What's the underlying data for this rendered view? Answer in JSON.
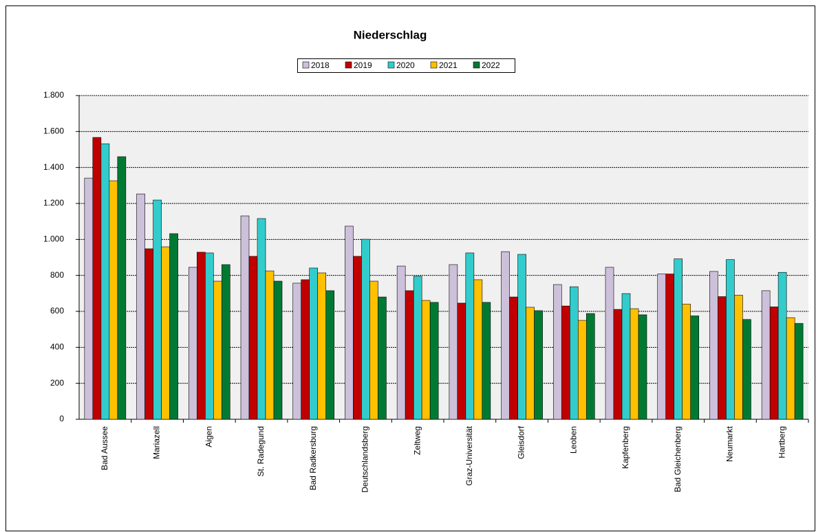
{
  "chart_data": {
    "type": "bar",
    "title": "Niederschlag",
    "categories": [
      "Bad Aussee",
      "Mariazell",
      "Aigen",
      "St. Radegund",
      "Bad Radkersburg",
      "Deutschlandsberg",
      "Zeltweg",
      "Graz-Universität",
      "Gleisdorf",
      "Leoben",
      "Kapfenberg",
      "Bad Gleichenberg",
      "Neumarkt",
      "Hartberg"
    ],
    "series": [
      {
        "name": "2018",
        "color": "#ccc0da",
        "values": [
          1341,
          1253,
          845,
          1131,
          757,
          1074,
          852,
          860,
          932,
          749,
          845,
          808,
          822,
          715
        ]
      },
      {
        "name": "2019",
        "color": "#c00000",
        "values": [
          1567,
          948,
          929,
          906,
          776,
          906,
          715,
          646,
          680,
          630,
          611,
          808,
          682,
          625
        ]
      },
      {
        "name": "2020",
        "color": "#33cccc",
        "values": [
          1532,
          1219,
          925,
          1116,
          841,
          1001,
          795,
          925,
          917,
          737,
          699,
          892,
          888,
          817
        ]
      },
      {
        "name": "2021",
        "color": "#ffc000",
        "values": [
          1326,
          959,
          768,
          825,
          814,
          768,
          661,
          776,
          623,
          550,
          615,
          640,
          690,
          565
        ]
      },
      {
        "name": "2022",
        "color": "#007a33",
        "values": [
          1460,
          1032,
          860,
          768,
          715,
          680,
          650,
          650,
          604,
          588,
          581,
          575,
          555,
          533
        ]
      }
    ],
    "ylim": [
      0,
      1800
    ],
    "yticks": [
      0,
      200,
      400,
      600,
      800,
      {
        "value": 1000,
        "label": "1.000"
      },
      {
        "value": 1200,
        "label": "1.200"
      },
      {
        "value": 1400,
        "label": "1.400"
      },
      {
        "value": 1600,
        "label": "1.600"
      },
      {
        "value": 1800,
        "label": "1.800"
      }
    ],
    "grid": true,
    "legend": "top"
  }
}
